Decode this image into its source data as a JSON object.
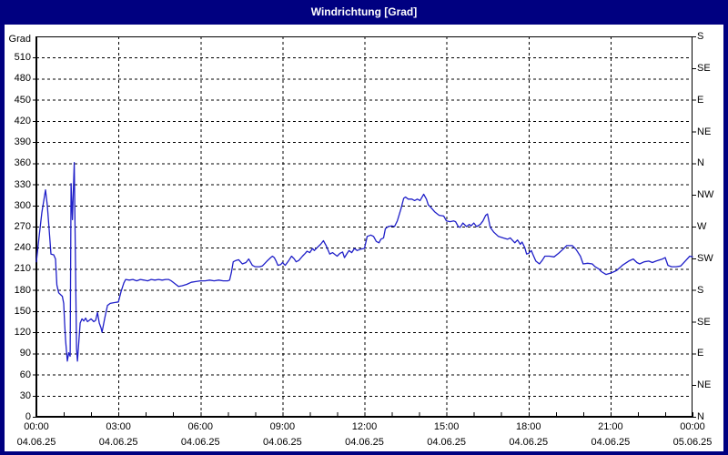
{
  "window": {
    "title": "Windrichtung [Grad]"
  },
  "colors": {
    "frame": "#000080",
    "title_text": "#ffffff",
    "plot_background": "#ffffff",
    "grid": "#000000",
    "axis": "#000000",
    "line": "#1f1fc8",
    "label_text": "#000000"
  },
  "chart_data": {
    "type": "line",
    "title": "Windrichtung [Grad]",
    "ylabel": "Grad",
    "legend": "none",
    "grid": "dashed",
    "y_axis": {
      "min": 0,
      "max": 540,
      "tick_step": 30,
      "unit": "Grad"
    },
    "y_ticks": [
      0,
      30,
      60,
      90,
      120,
      150,
      180,
      210,
      240,
      270,
      300,
      330,
      360,
      390,
      420,
      450,
      480,
      510
    ],
    "y_right_labels": [
      {
        "value": 0,
        "label": "N"
      },
      {
        "value": 45,
        "label": "NE"
      },
      {
        "value": 90,
        "label": "E"
      },
      {
        "value": 135,
        "label": "SE"
      },
      {
        "value": 180,
        "label": "S"
      },
      {
        "value": 225,
        "label": "SW"
      },
      {
        "value": 270,
        "label": "W"
      },
      {
        "value": 315,
        "label": "NW"
      },
      {
        "value": 360,
        "label": "N"
      },
      {
        "value": 405,
        "label": "NE"
      },
      {
        "value": 450,
        "label": "E"
      },
      {
        "value": 495,
        "label": "SE"
      },
      {
        "value": 540,
        "label": "S"
      }
    ],
    "x_axis": {
      "min_minutes": 0,
      "max_minutes": 1440,
      "major_step_minutes": 180,
      "minor_step_minutes": 60
    },
    "x_ticks": [
      {
        "minutes": 0,
        "time": "00:00",
        "date": "04.06.25"
      },
      {
        "minutes": 180,
        "time": "03:00",
        "date": "04.06.25"
      },
      {
        "minutes": 360,
        "time": "06:00",
        "date": "04.06.25"
      },
      {
        "minutes": 540,
        "time": "09:00",
        "date": "04.06.25"
      },
      {
        "minutes": 720,
        "time": "12:00",
        "date": "04.06.25"
      },
      {
        "minutes": 900,
        "time": "15:00",
        "date": "04.06.25"
      },
      {
        "minutes": 1080,
        "time": "18:00",
        "date": "04.06.25"
      },
      {
        "minutes": 1260,
        "time": "21:00",
        "date": "04.06.25"
      },
      {
        "minutes": 1440,
        "time": "00:00",
        "date": "05.06.25"
      }
    ],
    "series": [
      {
        "name": "Windrichtung",
        "color": "#1f1fc8",
        "points": [
          [
            0,
            220
          ],
          [
            6,
            256
          ],
          [
            12,
            290
          ],
          [
            20,
            322
          ],
          [
            24,
            300
          ],
          [
            28,
            266
          ],
          [
            32,
            231
          ],
          [
            38,
            230
          ],
          [
            42,
            224
          ],
          [
            45,
            187
          ],
          [
            49,
            176
          ],
          [
            57,
            171
          ],
          [
            60,
            161
          ],
          [
            62,
            133
          ],
          [
            64,
            110
          ],
          [
            66,
            94
          ],
          [
            68,
            79
          ],
          [
            71,
            91
          ],
          [
            74,
            86
          ],
          [
            76,
            331
          ],
          [
            79,
            280
          ],
          [
            83,
            361
          ],
          [
            88,
            97
          ],
          [
            90,
            79
          ],
          [
            96,
            133
          ],
          [
            100,
            139
          ],
          [
            104,
            136
          ],
          [
            108,
            140
          ],
          [
            112,
            135
          ],
          [
            116,
            137
          ],
          [
            120,
            139
          ],
          [
            126,
            135
          ],
          [
            130,
            137
          ],
          [
            134,
            148
          ],
          [
            138,
            133
          ],
          [
            142,
            126
          ],
          [
            144,
            120
          ],
          [
            150,
            140
          ],
          [
            156,
            158
          ],
          [
            162,
            161
          ],
          [
            170,
            162
          ],
          [
            180,
            163
          ],
          [
            186,
            178
          ],
          [
            192,
            190
          ],
          [
            196,
            195
          ],
          [
            204,
            194
          ],
          [
            212,
            195
          ],
          [
            220,
            193
          ],
          [
            228,
            195
          ],
          [
            236,
            194
          ],
          [
            244,
            193
          ],
          [
            252,
            195
          ],
          [
            260,
            194
          ],
          [
            268,
            195
          ],
          [
            276,
            194
          ],
          [
            284,
            195
          ],
          [
            290,
            195
          ],
          [
            296,
            193
          ],
          [
            306,
            188
          ],
          [
            312,
            185
          ],
          [
            320,
            186
          ],
          [
            330,
            188
          ],
          [
            340,
            191
          ],
          [
            350,
            192
          ],
          [
            360,
            193
          ],
          [
            370,
            193
          ],
          [
            380,
            194
          ],
          [
            390,
            193
          ],
          [
            400,
            194
          ],
          [
            410,
            193
          ],
          [
            420,
            193
          ],
          [
            424,
            194
          ],
          [
            428,
            205
          ],
          [
            432,
            220
          ],
          [
            438,
            222
          ],
          [
            444,
            223
          ],
          [
            452,
            217
          ],
          [
            460,
            219
          ],
          [
            466,
            224
          ],
          [
            474,
            215
          ],
          [
            480,
            213
          ],
          [
            490,
            213
          ],
          [
            496,
            214
          ],
          [
            506,
            221
          ],
          [
            514,
            226
          ],
          [
            518,
            228
          ],
          [
            522,
            226
          ],
          [
            526,
            221
          ],
          [
            530,
            215
          ],
          [
            536,
            216
          ],
          [
            540,
            219
          ],
          [
            546,
            215
          ],
          [
            554,
            222
          ],
          [
            560,
            228
          ],
          [
            566,
            224
          ],
          [
            570,
            220
          ],
          [
            576,
            222
          ],
          [
            584,
            228
          ],
          [
            590,
            232
          ],
          [
            594,
            235
          ],
          [
            600,
            233
          ],
          [
            606,
            239
          ],
          [
            610,
            236
          ],
          [
            616,
            240
          ],
          [
            624,
            245
          ],
          [
            630,
            250
          ],
          [
            636,
            243
          ],
          [
            644,
            231
          ],
          [
            650,
            233
          ],
          [
            656,
            230
          ],
          [
            660,
            228
          ],
          [
            666,
            232
          ],
          [
            672,
            234
          ],
          [
            676,
            226
          ],
          [
            682,
            232
          ],
          [
            686,
            236
          ],
          [
            692,
            233
          ],
          [
            698,
            239
          ],
          [
            704,
            236
          ],
          [
            712,
            238
          ],
          [
            720,
            239
          ],
          [
            726,
            256
          ],
          [
            734,
            258
          ],
          [
            740,
            256
          ],
          [
            746,
            249
          ],
          [
            752,
            247
          ],
          [
            756,
            252
          ],
          [
            762,
            254
          ],
          [
            766,
            267
          ],
          [
            772,
            270
          ],
          [
            780,
            271
          ],
          [
            786,
            270
          ],
          [
            792,
            278
          ],
          [
            800,
            295
          ],
          [
            806,
            310
          ],
          [
            810,
            312
          ],
          [
            816,
            309
          ],
          [
            824,
            309
          ],
          [
            830,
            307
          ],
          [
            836,
            309
          ],
          [
            842,
            307
          ],
          [
            850,
            316
          ],
          [
            856,
            309
          ],
          [
            860,
            301
          ],
          [
            866,
            297
          ],
          [
            874,
            291
          ],
          [
            880,
            288
          ],
          [
            884,
            286
          ],
          [
            894,
            285
          ],
          [
            900,
            278
          ],
          [
            908,
            277
          ],
          [
            916,
            278
          ],
          [
            920,
            277
          ],
          [
            926,
            270
          ],
          [
            930,
            269
          ],
          [
            936,
            275
          ],
          [
            944,
            270
          ],
          [
            950,
            273
          ],
          [
            954,
            271
          ],
          [
            960,
            275
          ],
          [
            966,
            270
          ],
          [
            974,
            273
          ],
          [
            980,
            278
          ],
          [
            986,
            286
          ],
          [
            990,
            288
          ],
          [
            996,
            269
          ],
          [
            1004,
            262
          ],
          [
            1014,
            256
          ],
          [
            1024,
            254
          ],
          [
            1034,
            252
          ],
          [
            1040,
            254
          ],
          [
            1050,
            247
          ],
          [
            1056,
            251
          ],
          [
            1062,
            245
          ],
          [
            1066,
            248
          ],
          [
            1072,
            240
          ],
          [
            1076,
            231
          ],
          [
            1080,
            232
          ],
          [
            1086,
            236
          ],
          [
            1090,
            230
          ],
          [
            1096,
            221
          ],
          [
            1104,
            217
          ],
          [
            1110,
            222
          ],
          [
            1116,
            228
          ],
          [
            1126,
            228
          ],
          [
            1136,
            227
          ],
          [
            1146,
            232
          ],
          [
            1156,
            238
          ],
          [
            1164,
            243
          ],
          [
            1176,
            243
          ],
          [
            1184,
            238
          ],
          [
            1194,
            228
          ],
          [
            1200,
            217
          ],
          [
            1210,
            218
          ],
          [
            1220,
            217
          ],
          [
            1226,
            213
          ],
          [
            1234,
            210
          ],
          [
            1240,
            206
          ],
          [
            1250,
            202
          ],
          [
            1260,
            204
          ],
          [
            1268,
            206
          ],
          [
            1274,
            208
          ],
          [
            1286,
            215
          ],
          [
            1300,
            221
          ],
          [
            1310,
            224
          ],
          [
            1318,
            219
          ],
          [
            1324,
            217
          ],
          [
            1334,
            220
          ],
          [
            1344,
            221
          ],
          [
            1352,
            219
          ],
          [
            1360,
            221
          ],
          [
            1374,
            224
          ],
          [
            1380,
            226
          ],
          [
            1386,
            215
          ],
          [
            1394,
            213
          ],
          [
            1404,
            213
          ],
          [
            1414,
            214
          ],
          [
            1424,
            221
          ],
          [
            1434,
            228
          ],
          [
            1440,
            227
          ]
        ]
      }
    ]
  }
}
